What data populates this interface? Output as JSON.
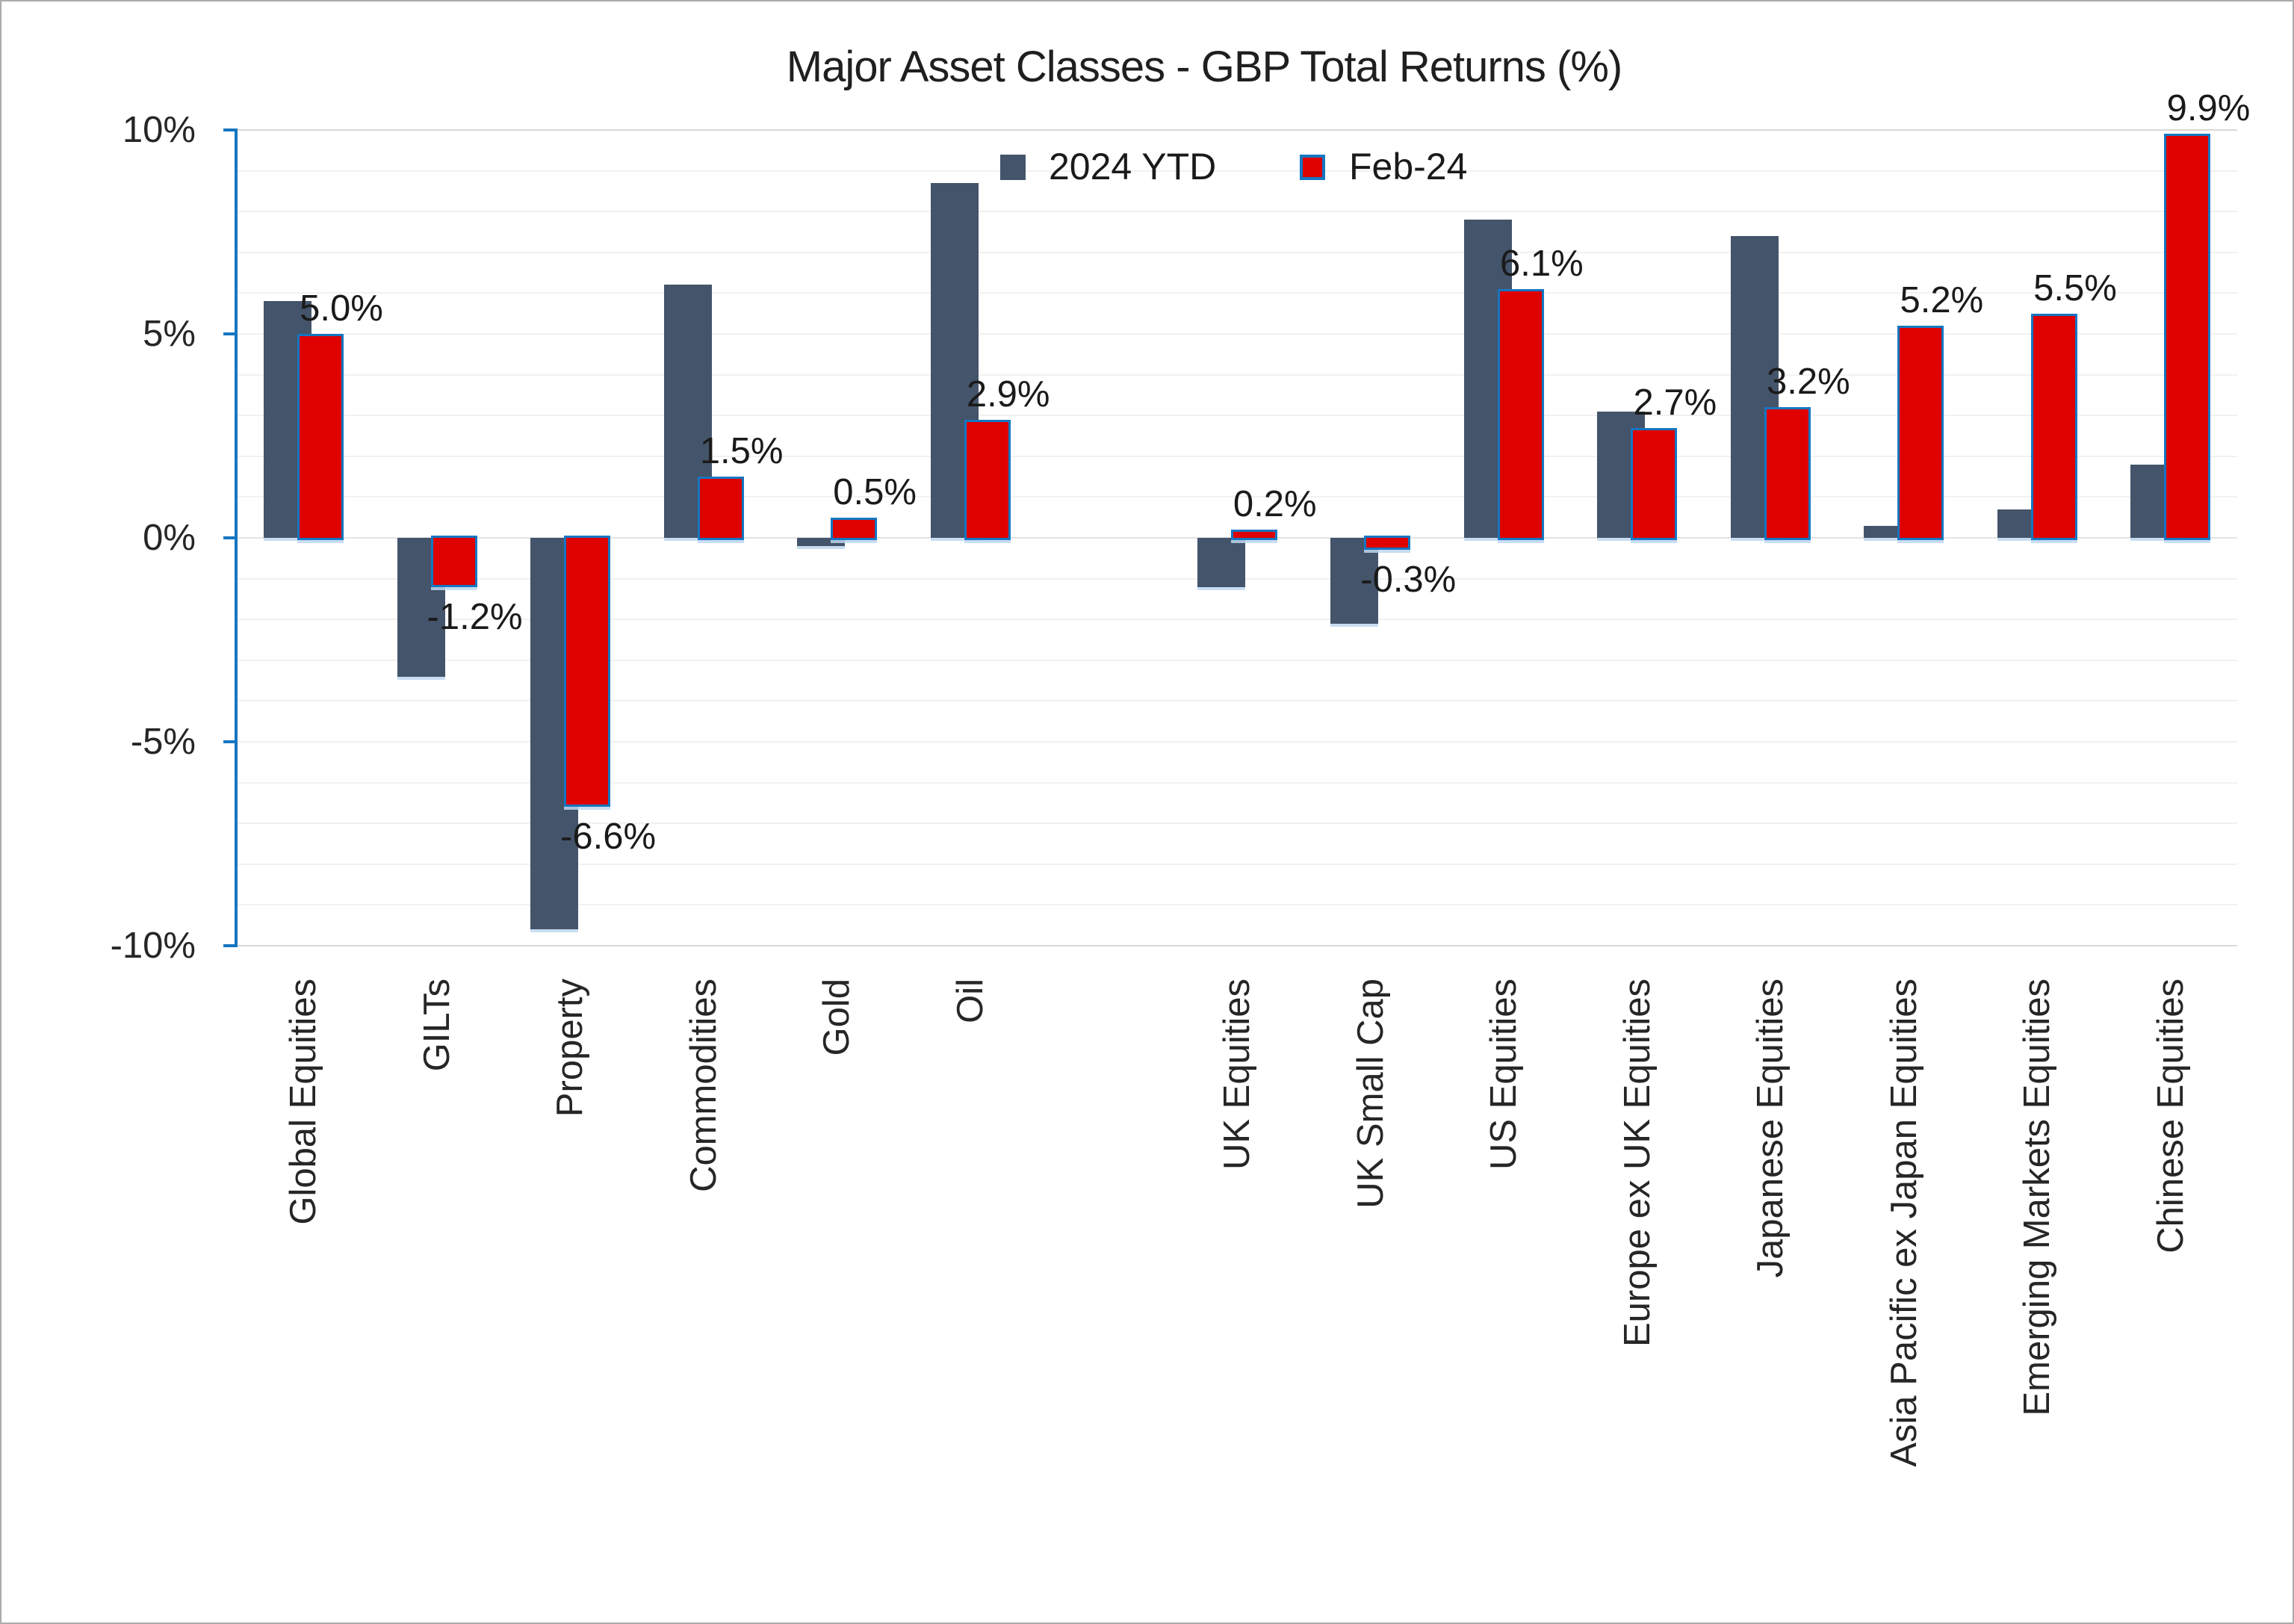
{
  "title": "Major Asset Classes - GBP Total Returns (%)",
  "y_axis": {
    "tick_labels": [
      "10%",
      "5%",
      "0%",
      "-5%",
      "-10%"
    ],
    "tick_values": [
      10,
      5,
      0,
      -5,
      -10
    ],
    "min": -10,
    "max": 10,
    "minor_step": 1
  },
  "legend": {
    "items": [
      "2024 YTD",
      "Feb-24"
    ]
  },
  "chart_data": {
    "type": "bar",
    "title": "Major Asset Classes - GBP Total Returns (%)",
    "categories": [
      "Global Equities",
      "GILTs",
      "Property",
      "Commodities",
      "Gold",
      "Oil",
      "",
      "UK Equities",
      "UK Small Cap",
      "US Equities",
      "Europe ex UK Equities",
      "Japanese Equities",
      "Asia Pacific ex Japan Equities",
      "Emerging Markets Equities",
      "Chinese Equities"
    ],
    "series": [
      {
        "name": "2024 YTD",
        "color": "#44546A",
        "values": [
          5.8,
          -3.4,
          -9.6,
          6.2,
          -0.2,
          8.7,
          null,
          -1.2,
          -2.1,
          7.8,
          3.1,
          7.4,
          0.3,
          0.7,
          1.8
        ]
      },
      {
        "name": "Feb-24",
        "color": "#DF0000",
        "border_color": "#1576C2",
        "values": [
          5.0,
          -1.2,
          -6.6,
          1.5,
          0.5,
          2.9,
          null,
          0.2,
          -0.3,
          6.1,
          2.7,
          3.2,
          5.2,
          5.5,
          9.9
        ],
        "data_labels": [
          "5.0%",
          "-1.2%",
          "-6.6%",
          "1.5%",
          "0.5%",
          "2.9%",
          null,
          "0.2%",
          "-0.3%",
          "6.1%",
          "2.7%",
          "3.2%",
          "5.2%",
          "5.5%",
          "9.9%"
        ]
      }
    ],
    "ylim": [
      -10,
      10
    ],
    "gridlines": "horizontal, every 1%",
    "legend_position": "top-center"
  },
  "colors": {
    "ytd_bar": "#44546A",
    "feb_bar": "#DF0000",
    "feb_bar_border": "#1576C2",
    "axis_line": "#1576C2",
    "gridline_minor": "#F1F1F1",
    "gridline_zero": "#E4E4E4",
    "gridline_edge": "#D8D8D8",
    "bar_shadow": "#BDD7EE",
    "text": "#262626",
    "page_border": "#ABABAB",
    "background": "#FFFFFF"
  }
}
